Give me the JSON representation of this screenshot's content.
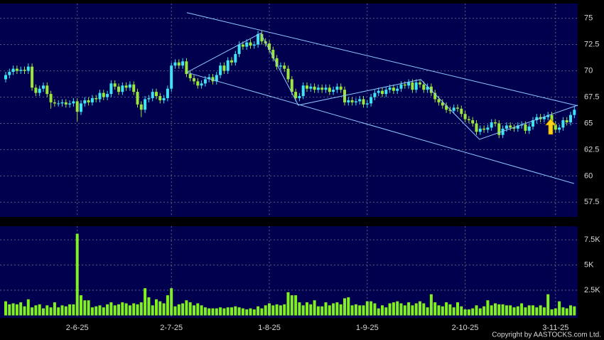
{
  "chart_data": [
    {
      "type": "candlestick",
      "up_color": "#3fe3f2",
      "down_color": "#9be63a",
      "grid": true,
      "ylim": [
        56.1,
        76.4
      ],
      "yticks": [
        57.5,
        60,
        62.5,
        65,
        67.5,
        70,
        72.5,
        75
      ],
      "open": [
        69.2,
        69.6,
        69.9,
        70.2,
        70.0,
        70.1,
        70.0,
        70.4,
        68.4,
        67.9,
        68.3,
        68.6,
        67.8,
        67.0,
        66.9,
        66.9,
        67.0,
        66.8,
        66.9,
        67.1,
        66.1,
        66.9,
        67.2,
        67.0,
        67.4,
        67.3,
        67.9,
        67.5,
        67.8,
        68.8,
        68.5,
        68.0,
        68.6,
        68.4,
        68.7,
        68.0,
        66.8,
        66.3,
        67.3,
        67.4,
        68.0,
        67.6,
        67.2,
        67.4,
        68.3,
        70.5,
        70.8,
        70.5,
        70.9,
        69.7,
        69.3,
        69.0,
        68.6,
        68.8,
        69.2,
        69.4,
        69.0,
        69.6,
        70.5,
        70.0,
        71.0,
        70.8,
        71.6,
        72.5,
        72.3,
        72.7,
        72.4,
        72.5,
        73.5,
        72.8,
        72.6,
        72.0,
        71.2,
        70.4,
        70.5,
        70.2,
        69.2,
        68.0,
        67.4,
        67.6,
        68.6,
        68.3,
        68.5,
        68.2,
        68.4,
        68.2,
        68.4,
        68.0,
        68.2,
        68.5,
        68.2,
        67.0,
        67.2,
        67.0,
        67.1,
        67.3,
        66.8,
        66.9,
        67.5,
        67.9,
        68.1,
        67.8,
        68.2,
        68.4,
        68.1,
        68.3,
        68.7,
        68.6,
        68.9,
        68.2,
        68.9,
        68.7,
        68.2,
        68.5,
        67.9,
        67.3,
        67.0,
        66.7,
        66.3,
        66.2,
        66.5,
        66.4,
        65.9,
        65.4,
        65.3,
        65.0,
        64.2,
        64.5,
        64.4,
        64.6,
        65.1,
        65.0,
        63.9,
        64.5,
        64.8,
        64.6,
        64.5,
        64.8,
        64.9,
        64.3,
        64.7,
        65.3,
        65.6,
        65.4,
        65.6,
        65.8,
        64.9,
        64.4,
        64.6,
        65.3,
        65.1,
        65.8
      ],
      "high": [
        69.9,
        70.2,
        70.5,
        70.5,
        70.4,
        70.4,
        70.7,
        70.7,
        68.7,
        68.6,
        68.9,
        68.9,
        68.1,
        67.3,
        67.2,
        67.3,
        67.3,
        67.2,
        67.4,
        67.4,
        67.2,
        67.5,
        67.5,
        67.7,
        67.7,
        68.2,
        68.2,
        68.1,
        69.1,
        69.1,
        68.8,
        68.9,
        68.9,
        69.0,
        69.0,
        68.3,
        67.1,
        67.6,
        67.7,
        68.3,
        68.3,
        67.9,
        67.7,
        68.6,
        70.8,
        71.1,
        71.1,
        71.2,
        71.2,
        70.0,
        69.6,
        69.3,
        69.1,
        69.5,
        69.7,
        69.7,
        69.9,
        70.8,
        70.8,
        71.3,
        71.3,
        71.9,
        72.8,
        72.8,
        73.0,
        73.0,
        72.8,
        73.8,
        73.8,
        73.1,
        72.9,
        72.3,
        71.5,
        70.8,
        70.8,
        70.5,
        69.5,
        68.3,
        67.9,
        68.9,
        68.9,
        68.8,
        68.8,
        68.7,
        68.7,
        68.7,
        68.7,
        68.5,
        68.8,
        68.8,
        68.5,
        67.5,
        67.5,
        67.4,
        67.6,
        67.6,
        67.2,
        67.8,
        68.2,
        68.4,
        68.4,
        68.5,
        68.7,
        68.7,
        68.6,
        69.0,
        69.0,
        69.2,
        69.2,
        69.2,
        69.2,
        69.0,
        68.8,
        68.8,
        68.2,
        67.6,
        67.3,
        67.0,
        66.6,
        66.8,
        66.8,
        66.7,
        66.2,
        65.7,
        65.6,
        65.3,
        64.8,
        64.8,
        64.9,
        65.4,
        65.4,
        65.3,
        64.8,
        65.1,
        65.1,
        64.9,
        65.1,
        65.2,
        65.2,
        65.0,
        65.6,
        65.9,
        65.9,
        65.9,
        66.1,
        66.1,
        65.2,
        64.9,
        65.6,
        65.6,
        66.1,
        66.6
      ],
      "low": [
        68.9,
        69.3,
        69.6,
        69.7,
        69.7,
        69.7,
        69.7,
        68.1,
        67.6,
        67.6,
        68.0,
        67.5,
        66.4,
        66.6,
        66.6,
        66.6,
        66.5,
        66.5,
        66.6,
        65.2,
        65.8,
        66.6,
        66.7,
        66.7,
        67.0,
        67.0,
        67.2,
        67.2,
        67.5,
        68.2,
        67.7,
        67.7,
        68.1,
        68.1,
        67.7,
        66.5,
        65.6,
        66.0,
        67.0,
        67.1,
        67.3,
        66.9,
        66.9,
        67.1,
        68.0,
        70.2,
        70.2,
        70.2,
        69.4,
        69.0,
        68.7,
        68.3,
        68.3,
        68.5,
        68.9,
        68.7,
        68.7,
        69.3,
        69.7,
        69.7,
        70.5,
        70.5,
        71.3,
        72.0,
        72.0,
        72.1,
        72.1,
        72.2,
        72.5,
        72.3,
        71.7,
        70.9,
        70.1,
        70.1,
        69.9,
        68.9,
        67.7,
        67.1,
        67.1,
        67.3,
        68.0,
        68.0,
        67.9,
        67.9,
        67.9,
        67.9,
        67.7,
        67.7,
        67.9,
        67.9,
        66.7,
        66.7,
        66.7,
        66.7,
        66.8,
        66.5,
        66.5,
        66.6,
        67.2,
        67.6,
        67.5,
        67.5,
        67.9,
        67.8,
        67.8,
        68.0,
        68.3,
        68.3,
        67.9,
        67.9,
        68.4,
        67.9,
        67.9,
        67.6,
        67.0,
        66.7,
        66.4,
        66.0,
        65.9,
        65.9,
        66.1,
        65.6,
        65.1,
        65.0,
        64.7,
        63.9,
        63.9,
        64.1,
        64.1,
        64.3,
        64.7,
        63.6,
        63.6,
        64.2,
        64.3,
        64.2,
        64.2,
        64.5,
        64.0,
        64.0,
        64.4,
        65.0,
        65.1,
        65.1,
        65.3,
        64.6,
        64.1,
        64.1,
        64.3,
        64.8,
        64.8,
        65.5
      ],
      "close": [
        69.6,
        69.9,
        70.2,
        70.0,
        70.1,
        70.0,
        70.4,
        68.4,
        67.9,
        68.3,
        68.6,
        67.8,
        67.0,
        66.9,
        66.9,
        67.0,
        66.8,
        66.9,
        67.1,
        66.1,
        66.9,
        67.2,
        67.0,
        67.4,
        67.3,
        67.9,
        67.5,
        67.8,
        68.8,
        68.5,
        68.0,
        68.6,
        68.4,
        68.7,
        68.0,
        66.8,
        66.3,
        67.3,
        67.4,
        68.0,
        67.6,
        67.2,
        67.4,
        68.3,
        70.5,
        70.8,
        70.5,
        70.9,
        69.7,
        69.3,
        69.0,
        68.6,
        68.8,
        69.2,
        69.4,
        69.0,
        69.6,
        70.5,
        70.0,
        71.0,
        70.8,
        71.6,
        72.5,
        72.3,
        72.7,
        72.4,
        72.5,
        73.5,
        72.8,
        72.6,
        72.0,
        71.2,
        70.4,
        70.5,
        70.2,
        69.2,
        68.0,
        67.4,
        67.6,
        68.6,
        68.3,
        68.5,
        68.2,
        68.4,
        68.2,
        68.4,
        68.0,
        68.2,
        68.5,
        68.2,
        67.0,
        67.2,
        67.0,
        67.1,
        67.3,
        66.8,
        66.9,
        67.5,
        67.9,
        68.1,
        67.8,
        68.2,
        68.4,
        68.1,
        68.3,
        68.7,
        68.6,
        68.9,
        68.2,
        68.9,
        68.7,
        68.2,
        68.5,
        67.9,
        67.3,
        67.0,
        66.7,
        66.3,
        66.2,
        66.5,
        66.4,
        65.9,
        65.4,
        65.3,
        65.0,
        64.2,
        64.5,
        64.4,
        64.6,
        65.1,
        65.0,
        63.9,
        64.5,
        64.8,
        64.6,
        64.5,
        64.8,
        64.9,
        64.3,
        64.7,
        65.3,
        65.6,
        65.4,
        65.6,
        65.8,
        64.9,
        64.4,
        64.6,
        65.3,
        65.1,
        65.8,
        66.3
      ],
      "trendlines": [
        {
          "x": [
            48.1,
            151.9
          ],
          "y": [
            75.54,
            66.67
          ]
        },
        {
          "x": [
            48.1,
            150.9
          ],
          "y": [
            69.85,
            59.28
          ]
        },
        {
          "x": [
            48.1,
            67.7,
            77.7,
            110.2,
            125.8,
            151.9
          ],
          "y": [
            69.85,
            73.58,
            66.73,
            69.17,
            63.48,
            66.73
          ]
        }
      ],
      "trendline_color": "#8ec8ff",
      "arrow": {
        "x": 144.7,
        "y": 64.7,
        "color": "#ffd21a"
      }
    },
    {
      "type": "bar",
      "color": "#80f020",
      "grid": true,
      "ylim": [
        -250,
        8850
      ],
      "yticks": [
        {
          "value": 2500,
          "label": "2.5K"
        },
        {
          "value": 5000,
          "label": "5K"
        },
        {
          "value": 7500,
          "label": "7.5K"
        }
      ],
      "categories": [
        null,
        null,
        null,
        null,
        null,
        null,
        null,
        null,
        null,
        null,
        null,
        null,
        null,
        null,
        null,
        null,
        null,
        null,
        null,
        "2-6-25",
        null,
        null,
        null,
        null,
        null,
        null,
        null,
        null,
        null,
        null,
        null,
        null,
        null,
        null,
        null,
        null,
        null,
        null,
        null,
        null,
        null,
        null,
        null,
        null,
        "2-7-25",
        null,
        null,
        null,
        null,
        null,
        null,
        null,
        null,
        null,
        null,
        null,
        null,
        null,
        null,
        null,
        null,
        null,
        null,
        null,
        null,
        null,
        null,
        null,
        null,
        null,
        "1-8-25",
        null,
        null,
        null,
        null,
        null,
        null,
        null,
        null,
        null,
        null,
        null,
        null,
        null,
        null,
        null,
        null,
        null,
        null,
        null,
        null,
        null,
        null,
        null,
        null,
        null,
        "1-9-25",
        null,
        null,
        null,
        null,
        null,
        null,
        null,
        null,
        null,
        null,
        null,
        null,
        null,
        null,
        null,
        null,
        null,
        null,
        null,
        null,
        null,
        null,
        null,
        null,
        null,
        "2-10-25",
        null,
        null,
        null,
        null,
        null,
        null,
        null,
        null,
        null,
        null,
        null,
        null,
        null,
        null,
        null,
        null,
        null,
        null,
        null,
        null,
        null,
        null,
        null,
        "3-11-25",
        null,
        null,
        null,
        null,
        null
      ],
      "values": [
        1400,
        1100,
        1200,
        1100,
        1300,
        900,
        1600,
        800,
        1000,
        1100,
        700,
        1000,
        800,
        1300,
        800,
        1000,
        900,
        1100,
        1100,
        8100,
        2000,
        1500,
        1500,
        800,
        900,
        1000,
        800,
        1100,
        1300,
        1000,
        1100,
        1300,
        1200,
        1000,
        1200,
        1100,
        1300,
        2700,
        1800,
        1000,
        1600,
        1400,
        1200,
        2000,
        2700,
        900,
        1100,
        1200,
        1500,
        1300,
        1000,
        1200,
        1000,
        800,
        700,
        700,
        700,
        800,
        700,
        800,
        800,
        900,
        800,
        700,
        600,
        700,
        600,
        900,
        700,
        1000,
        1200,
        1000,
        1100,
        1000,
        1100,
        2300,
        2000,
        2000,
        1300,
        1000,
        1300,
        1100,
        1500,
        900,
        900,
        1300,
        1000,
        1200,
        1300,
        1100,
        1700,
        1800,
        1000,
        1100,
        1000,
        1000,
        1400,
        1400,
        1200,
        700,
        1000,
        800,
        1200,
        1300,
        1400,
        1200,
        1000,
        1300,
        1000,
        1200,
        1400,
        1200,
        800,
        2100,
        1300,
        1000,
        900,
        1300,
        1100,
        800,
        1300,
        900,
        600,
        600,
        700,
        1000,
        700,
        900,
        1500,
        1000,
        1200,
        1100,
        1100,
        1000,
        1000,
        800,
        900,
        1200,
        800,
        1000,
        1000,
        800,
        1000,
        800,
        2100,
        600,
        700,
        1400,
        800,
        700,
        1000,
        900
      ]
    }
  ],
  "copyright": "Copyright by AASTOCKS.com Ltd."
}
